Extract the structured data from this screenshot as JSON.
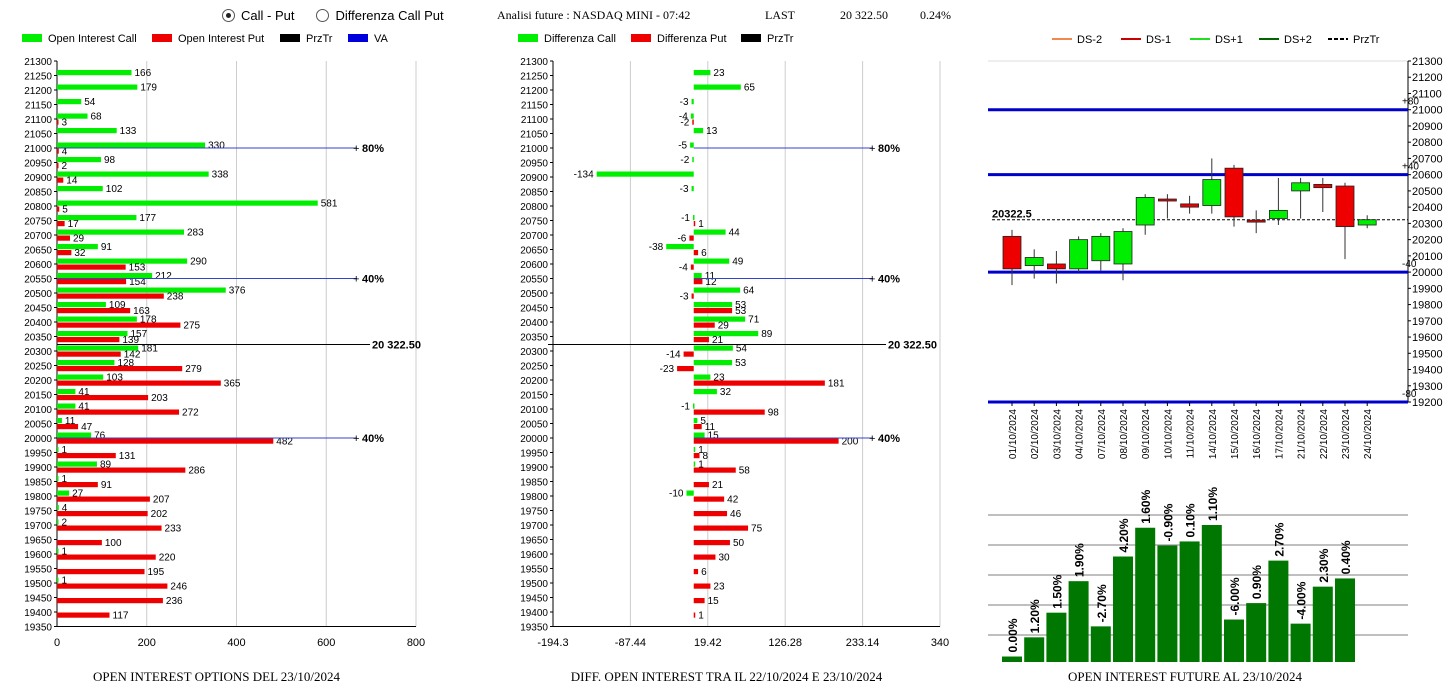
{
  "controls": {
    "radio_call_put": "Call - Put",
    "radio_diff": "Differenza Call Put",
    "selected": "Call - Put"
  },
  "header": {
    "title": "Analisi future : NASDAQ MINI - 07:42",
    "last_label": "LAST",
    "last_value": "20 322.50",
    "change": "0.24%"
  },
  "colors": {
    "call": "#00ee00",
    "put": "#ee0000",
    "przTr": "#000000",
    "va": "#0000dd",
    "dark_green": "#007700"
  },
  "chart_data": [
    {
      "type": "bar",
      "orientation": "horizontal",
      "legend": [
        "Open Interest Call",
        "Open Interest Put",
        "PrzTr",
        "VA"
      ],
      "title": "OPEN INTEREST OPTIONS DEL 23/10/2024",
      "categories": [
        21300,
        21250,
        21200,
        21150,
        21100,
        21050,
        21000,
        20950,
        20900,
        20850,
        20800,
        20750,
        20700,
        20650,
        20600,
        20550,
        20500,
        20450,
        20400,
        20350,
        20300,
        20250,
        20200,
        20150,
        20100,
        20050,
        20000,
        19950,
        19900,
        19850,
        19800,
        19750,
        19700,
        19650,
        19600,
        19550,
        19500,
        19450,
        19400,
        19350
      ],
      "series": [
        {
          "name": "Open Interest Call",
          "values": [
            null,
            166,
            179,
            54,
            68,
            133,
            330,
            98,
            338,
            102,
            581,
            177,
            283,
            91,
            290,
            212,
            376,
            109,
            178,
            157,
            181,
            128,
            103,
            41,
            41,
            11,
            76,
            1,
            89,
            1,
            27,
            4,
            2,
            null,
            1,
            null,
            1,
            null,
            null,
            null
          ]
        },
        {
          "name": "Open Interest Put",
          "values": [
            null,
            null,
            null,
            null,
            3,
            null,
            4,
            2,
            14,
            null,
            5,
            17,
            29,
            32,
            153,
            154,
            238,
            163,
            275,
            139,
            142,
            279,
            365,
            203,
            272,
            47,
            482,
            131,
            286,
            91,
            207,
            202,
            233,
            100,
            220,
            195,
            246,
            236,
            117,
            null
          ]
        }
      ],
      "xticks": [
        0,
        200,
        400,
        600,
        800
      ],
      "xlim": [
        0,
        800
      ],
      "ref_lines": [
        {
          "strike": 21000,
          "label": "80%"
        },
        {
          "strike": 20550,
          "label": "40%"
        },
        {
          "strike": 20000,
          "label": "40%"
        }
      ],
      "price_line": {
        "value": 20322.5,
        "label": "20 322.50"
      }
    },
    {
      "type": "bar",
      "orientation": "horizontal",
      "legend": [
        "Differenza Call",
        "Differenza Put",
        "PrzTr"
      ],
      "title": "DIFF. OPEN INTEREST TRA IL 22/10/2024 E 23/10/2024",
      "categories": [
        21300,
        21250,
        21200,
        21150,
        21100,
        21050,
        21000,
        20950,
        20900,
        20850,
        20800,
        20750,
        20700,
        20650,
        20600,
        20550,
        20500,
        20450,
        20400,
        20350,
        20300,
        20250,
        20200,
        20150,
        20100,
        20050,
        20000,
        19950,
        19900,
        19850,
        19800,
        19750,
        19700,
        19650,
        19600,
        19550,
        19500,
        19450,
        19400,
        19350
      ],
      "series": [
        {
          "name": "Differenza Call",
          "values": [
            null,
            23,
            65,
            -3,
            -4,
            13,
            -5,
            -2,
            -134,
            -3,
            null,
            -1,
            44,
            -38,
            49,
            11,
            64,
            53,
            71,
            89,
            54,
            53,
            23,
            32,
            -1,
            5,
            15,
            1,
            1,
            null,
            -10,
            null,
            null,
            null,
            null,
            null,
            null,
            null,
            null,
            null
          ]
        },
        {
          "name": "Differenza Put",
          "values": [
            null,
            null,
            null,
            null,
            -2,
            null,
            null,
            null,
            null,
            null,
            null,
            1,
            -6,
            6,
            -4,
            12,
            -3,
            53,
            29,
            21,
            -14,
            -23,
            181,
            null,
            98,
            11,
            200,
            8,
            58,
            21,
            42,
            46,
            75,
            50,
            30,
            6,
            23,
            15,
            1,
            null
          ]
        }
      ],
      "xticks": [
        -194.3,
        -87.44,
        19.42,
        126.28,
        233.14,
        340
      ],
      "xlim": [
        -194.3,
        340
      ],
      "ref_lines": [
        {
          "strike": 21000,
          "label": "80%"
        },
        {
          "strike": 20550,
          "label": "40%"
        },
        {
          "strike": 20000,
          "label": "40%"
        }
      ],
      "price_line": {
        "value": 20322.5,
        "label": "20 322.50"
      }
    },
    {
      "type": "candlestick",
      "legend": [
        "DS-2",
        "DS-1",
        "DS+1",
        "DS+2",
        "PrzTr"
      ],
      "dates": [
        "01/10/2024",
        "02/10/2024",
        "03/10/2024",
        "04/10/2024",
        "07/10/2024",
        "08/10/2024",
        "09/10/2024",
        "10/10/2024",
        "11/10/2024",
        "14/10/2024",
        "15/10/2024",
        "16/10/2024",
        "17/10/2024",
        "21/10/2024",
        "22/10/2024",
        "23/10/2024",
        "24/10/2024"
      ],
      "open": [
        20220,
        20040,
        20050,
        20020,
        20070,
        20050,
        20290,
        20450,
        20420,
        20410,
        20640,
        20320,
        20330,
        20500,
        20540,
        20530,
        20290
      ],
      "close": [
        20020,
        20090,
        20020,
        20200,
        20220,
        20250,
        20460,
        20440,
        20400,
        20570,
        20340,
        20310,
        20380,
        20550,
        20520,
        20280,
        20322.5
      ],
      "high": [
        20260,
        20140,
        20130,
        20220,
        20240,
        20270,
        20480,
        20480,
        20470,
        20700,
        20660,
        20380,
        20580,
        20580,
        20580,
        20550,
        20350
      ],
      "low": [
        19920,
        19960,
        19930,
        20000,
        20010,
        19950,
        20230,
        20330,
        20360,
        20360,
        20280,
        20240,
        20290,
        20330,
        20370,
        20080,
        20270
      ],
      "ylim": [
        19200,
        21300
      ],
      "yticks": [
        21300,
        21200,
        21100,
        21000,
        20900,
        20800,
        20700,
        20600,
        20500,
        20400,
        20300,
        20200,
        20100,
        20000,
        19900,
        19800,
        19700,
        19600,
        19500,
        19400,
        19300,
        19200
      ],
      "bands": [
        {
          "value": 21000,
          "label": "+80"
        },
        {
          "value": 20600,
          "label": "+40"
        },
        {
          "value": 20000,
          "label": "-40"
        },
        {
          "value": 19200,
          "label": "-80"
        }
      ],
      "price_line": {
        "value": 20322.5,
        "label": "20322.5"
      }
    },
    {
      "type": "bar",
      "title": "OPEN INTEREST FUTURE AL 23/10/2024",
      "values": [
        0.0,
        1.2,
        1.5,
        1.9,
        -2.7,
        4.2,
        1.6,
        -0.9,
        0.1,
        1.1,
        -6.0,
        0.9,
        2.7,
        -4.0,
        2.3,
        0.4
      ],
      "labels": [
        "0.00%",
        "1.20%",
        "1.50%",
        "1.90%",
        "-2.70%",
        "4.20%",
        "1.60%",
        "-0.90%",
        "0.10%",
        "1.10%",
        "-6.00%",
        "0.90%",
        "2.70%",
        "-4.00%",
        "2.30%",
        "0.40%"
      ],
      "bar_levels": [
        0.04,
        0.18,
        0.36,
        0.59,
        0.26,
        0.77,
        0.98,
        0.85,
        0.88,
        1.0,
        0.31,
        0.43,
        0.74,
        0.28,
        0.55,
        0.61
      ]
    }
  ]
}
